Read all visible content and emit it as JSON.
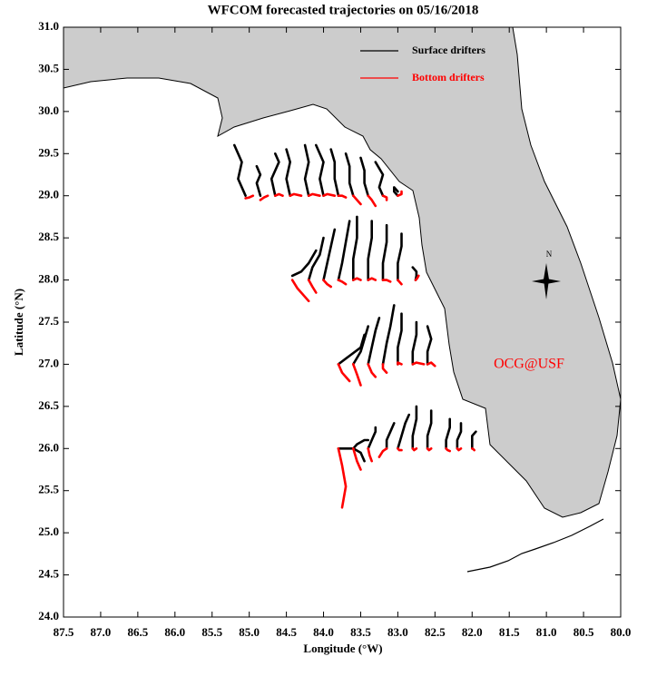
{
  "chart_data": {
    "type": "trajectory-map",
    "title": "WFCOM forecasted trajectories on 05/16/2018",
    "x_label": "Longitude (°W)",
    "y_label": "Latitude (°N)",
    "annotation": "OCG@USF",
    "compass": "N",
    "legend": "upper right",
    "xlim": [
      87.5,
      80.0
    ],
    "ylim": [
      24,
      31
    ],
    "xticks": [
      87.5,
      {
        "value": 87,
        "label": "87.0"
      },
      86.5,
      {
        "value": 86,
        "label": "86.0"
      },
      85.5,
      {
        "value": 85,
        "label": "85.0"
      },
      84.5,
      {
        "value": 84,
        "label": "84.0"
      },
      83.5,
      {
        "value": 83,
        "label": "83.0"
      },
      82.5,
      {
        "value": 82,
        "label": "82.0"
      },
      81.5,
      {
        "value": 81,
        "label": "81.0"
      },
      80.5,
      {
        "value": 80,
        "label": "80.0"
      }
    ],
    "yticks": [
      {
        "value": 24,
        "label": "24.0"
      },
      24.5,
      {
        "value": 25,
        "label": "25.0"
      },
      25.5,
      {
        "value": 26,
        "label": "26.0"
      },
      26.5,
      {
        "value": 27,
        "label": "27.0"
      },
      27.5,
      {
        "value": 28,
        "label": "28.0"
      },
      28.5,
      {
        "value": 29,
        "label": "29.0"
      },
      29.5,
      {
        "value": 30,
        "label": "30.0"
      },
      30.5,
      {
        "value": 31,
        "label": "31.0"
      }
    ],
    "series": [
      {
        "name": "Surface drifters",
        "color": "#000000",
        "tracks": [
          {
            "lon": [
              85.05,
              85.15,
              85.1,
              85.2
            ],
            "lat": [
              29.0,
              29.2,
              29.4,
              29.6
            ]
          },
          {
            "lon": [
              84.85,
              84.9,
              84.85,
              84.9
            ],
            "lat": [
              29.0,
              29.15,
              29.25,
              29.35
            ]
          },
          {
            "lon": [
              84.65,
              84.7,
              84.6,
              84.65
            ],
            "lat": [
              29.0,
              29.2,
              29.4,
              29.5
            ]
          },
          {
            "lon": [
              84.45,
              84.5,
              84.45,
              84.5
            ],
            "lat": [
              29.0,
              29.2,
              29.4,
              29.55
            ]
          },
          {
            "lon": [
              84.2,
              84.25,
              84.2,
              84.25
            ],
            "lat": [
              29.0,
              29.2,
              29.4,
              29.6
            ]
          },
          {
            "lon": [
              84.0,
              84.05,
              84.0,
              84.1
            ],
            "lat": [
              29.0,
              29.2,
              29.4,
              29.6
            ]
          },
          {
            "lon": [
              83.8,
              83.85,
              83.85,
              83.9
            ],
            "lat": [
              29.0,
              29.2,
              29.4,
              29.55
            ]
          },
          {
            "lon": [
              83.6,
              83.65,
              83.65,
              83.7
            ],
            "lat": [
              29.0,
              29.15,
              29.35,
              29.5
            ]
          },
          {
            "lon": [
              83.4,
              83.45,
              83.45,
              83.5
            ],
            "lat": [
              29.0,
              29.15,
              29.3,
              29.45
            ]
          },
          {
            "lon": [
              83.2,
              83.25,
              83.2,
              83.3
            ],
            "lat": [
              29.0,
              29.1,
              29.25,
              29.4
            ]
          },
          {
            "lon": [
              83.0,
              83.05,
              83.05,
              83.0
            ],
            "lat": [
              29.0,
              29.05,
              29.1,
              29.05
            ]
          },
          {
            "lon": [
              84.42,
              84.3,
              84.2,
              84.1
            ],
            "lat": [
              28.05,
              28.1,
              28.2,
              28.35
            ]
          },
          {
            "lon": [
              84.2,
              84.15,
              84.05,
              84.0
            ],
            "lat": [
              28.0,
              28.15,
              28.3,
              28.5
            ]
          },
          {
            "lon": [
              84.0,
              83.95,
              83.9,
              83.85
            ],
            "lat": [
              28.0,
              28.2,
              28.4,
              28.6
            ]
          },
          {
            "lon": [
              83.8,
              83.75,
              83.7,
              83.65
            ],
            "lat": [
              28.0,
              28.2,
              28.45,
              28.7
            ]
          },
          {
            "lon": [
              83.6,
              83.6,
              83.55,
              83.55
            ],
            "lat": [
              28.0,
              28.25,
              28.5,
              28.75
            ]
          },
          {
            "lon": [
              83.4,
              83.4,
              83.35,
              83.35
            ],
            "lat": [
              28.0,
              28.25,
              28.5,
              28.7
            ]
          },
          {
            "lon": [
              83.2,
              83.2,
              83.15,
              83.15
            ],
            "lat": [
              28.0,
              28.2,
              28.45,
              28.65
            ]
          },
          {
            "lon": [
              83.0,
              83.0,
              82.95,
              82.95
            ],
            "lat": [
              28.0,
              28.2,
              28.4,
              28.55
            ]
          },
          {
            "lon": [
              82.76,
              82.75,
              82.75,
              82.8
            ],
            "lat": [
              28.0,
              28.05,
              28.1,
              28.15
            ]
          },
          {
            "lon": [
              83.8,
              83.65,
              83.5,
              83.45
            ],
            "lat": [
              27.0,
              27.1,
              27.2,
              27.35
            ]
          },
          {
            "lon": [
              83.6,
              83.5,
              83.45,
              83.4
            ],
            "lat": [
              27.0,
              27.15,
              27.3,
              27.45
            ]
          },
          {
            "lon": [
              83.4,
              83.35,
              83.3,
              83.25
            ],
            "lat": [
              27.0,
              27.2,
              27.4,
              27.55
            ]
          },
          {
            "lon": [
              83.2,
              83.15,
              83.1,
              83.05
            ],
            "lat": [
              27.0,
              27.25,
              27.45,
              27.7
            ]
          },
          {
            "lon": [
              83.0,
              83.0,
              82.95,
              82.95
            ],
            "lat": [
              27.0,
              27.2,
              27.4,
              27.6
            ]
          },
          {
            "lon": [
              82.8,
              82.8,
              82.75,
              82.75
            ],
            "lat": [
              27.0,
              27.15,
              27.35,
              27.5
            ]
          },
          {
            "lon": [
              82.6,
              82.6,
              82.55,
              82.6
            ],
            "lat": [
              27.0,
              27.15,
              27.3,
              27.45
            ]
          },
          {
            "lon": [
              83.8,
              83.6,
              83.5,
              83.45
            ],
            "lat": [
              26.0,
              26.0,
              25.95,
              25.85
            ]
          },
          {
            "lon": [
              83.6,
              83.55,
              83.45,
              83.4
            ],
            "lat": [
              26.0,
              26.05,
              26.1,
              26.1
            ]
          },
          {
            "lon": [
              83.4,
              83.35,
              83.3,
              83.3
            ],
            "lat": [
              26.0,
              26.1,
              26.2,
              26.25
            ]
          },
          {
            "lon": [
              83.15,
              83.15,
              83.1,
              83.05
            ],
            "lat": [
              26.0,
              26.1,
              26.2,
              26.3
            ]
          },
          {
            "lon": [
              83.0,
              82.95,
              82.9,
              82.85
            ],
            "lat": [
              26.0,
              26.15,
              26.3,
              26.4
            ]
          },
          {
            "lon": [
              82.8,
              82.8,
              82.75,
              82.75
            ],
            "lat": [
              26.0,
              26.15,
              26.35,
              26.5
            ]
          },
          {
            "lon": [
              82.6,
              82.6,
              82.55,
              82.55
            ],
            "lat": [
              26.0,
              26.15,
              26.3,
              26.45
            ]
          },
          {
            "lon": [
              82.35,
              82.35,
              82.3,
              82.3
            ],
            "lat": [
              26.0,
              26.1,
              26.25,
              26.35
            ]
          },
          {
            "lon": [
              82.2,
              82.2,
              82.15,
              82.15
            ],
            "lat": [
              26.0,
              26.1,
              26.2,
              26.3
            ]
          },
          {
            "lon": [
              82.0,
              82.0,
              82.0,
              81.95
            ],
            "lat": [
              26.0,
              26.05,
              26.15,
              26.2
            ]
          }
        ]
      },
      {
        "name": "Bottom drifters",
        "color": "#ff0000",
        "tracks": [
          {
            "lon": [
              85.05,
              85.0,
              84.95
            ],
            "lat": [
              28.97,
              28.98,
              29.0
            ]
          },
          {
            "lon": [
              84.85,
              84.8,
              84.75
            ],
            "lat": [
              28.95,
              28.98,
              29.0
            ]
          },
          {
            "lon": [
              84.65,
              84.6,
              84.55
            ],
            "lat": [
              29.0,
              29.02,
              29.0
            ]
          },
          {
            "lon": [
              84.45,
              84.4,
              84.3
            ],
            "lat": [
              29.0,
              29.02,
              29.0
            ]
          },
          {
            "lon": [
              84.2,
              84.15,
              84.05
            ],
            "lat": [
              29.0,
              29.02,
              29.0
            ]
          },
          {
            "lon": [
              84.0,
              83.95,
              83.85
            ],
            "lat": [
              29.0,
              29.02,
              29.0
            ]
          },
          {
            "lon": [
              83.8,
              83.75,
              83.7
            ],
            "lat": [
              29.0,
              29.0,
              28.98
            ]
          },
          {
            "lon": [
              83.6,
              83.55,
              83.5
            ],
            "lat": [
              29.0,
              28.95,
              28.9
            ]
          },
          {
            "lon": [
              83.4,
              83.35,
              83.3
            ],
            "lat": [
              29.0,
              28.95,
              28.88
            ]
          },
          {
            "lon": [
              83.2,
              83.15,
              83.15
            ],
            "lat": [
              29.0,
              28.98,
              28.95
            ]
          },
          {
            "lon": [
              83.0,
              82.95,
              82.95
            ],
            "lat": [
              29.0,
              29.02,
              29.05
            ]
          },
          {
            "lon": [
              84.42,
              84.35,
              84.2
            ],
            "lat": [
              28.0,
              27.9,
              27.75
            ]
          },
          {
            "lon": [
              84.2,
              84.15,
              84.1
            ],
            "lat": [
              28.0,
              27.92,
              27.85
            ]
          },
          {
            "lon": [
              84.0,
              83.95,
              83.9
            ],
            "lat": [
              28.0,
              27.95,
              27.92
            ]
          },
          {
            "lon": [
              83.8,
              83.75,
              83.7
            ],
            "lat": [
              28.0,
              27.98,
              27.95
            ]
          },
          {
            "lon": [
              83.6,
              83.55,
              83.5
            ],
            "lat": [
              28.0,
              28.02,
              28.0
            ]
          },
          {
            "lon": [
              83.4,
              83.35,
              83.3
            ],
            "lat": [
              28.0,
              28.02,
              28.0
            ]
          },
          {
            "lon": [
              83.2,
              83.15,
              83.1
            ],
            "lat": [
              28.0,
              28.0,
              27.98
            ]
          },
          {
            "lon": [
              83.0,
              82.98,
              82.95
            ],
            "lat": [
              28.0,
              27.98,
              27.95
            ]
          },
          {
            "lon": [
              82.76,
              82.74,
              82.72
            ],
            "lat": [
              28.0,
              28.02,
              28.05
            ]
          },
          {
            "lon": [
              83.8,
              83.75,
              83.65
            ],
            "lat": [
              27.0,
              26.9,
              26.8
            ]
          },
          {
            "lon": [
              83.6,
              83.55,
              83.5
            ],
            "lat": [
              27.0,
              26.88,
              26.75
            ]
          },
          {
            "lon": [
              83.4,
              83.35,
              83.3
            ],
            "lat": [
              27.0,
              26.9,
              26.85
            ]
          },
          {
            "lon": [
              83.2,
              83.2,
              83.15
            ],
            "lat": [
              27.0,
              26.95,
              26.9
            ]
          },
          {
            "lon": [
              83.0,
              83.0,
              82.95
            ],
            "lat": [
              27.0,
              27.02,
              27.0
            ]
          },
          {
            "lon": [
              82.8,
              82.75,
              82.65
            ],
            "lat": [
              27.0,
              27.02,
              27.0
            ]
          },
          {
            "lon": [
              82.6,
              82.55,
              82.5
            ],
            "lat": [
              27.0,
              27.02,
              26.98
            ]
          },
          {
            "lon": [
              83.8,
              83.75,
              83.7,
              83.75
            ],
            "lat": [
              26.0,
              25.8,
              25.55,
              25.3
            ]
          },
          {
            "lon": [
              83.6,
              83.55,
              83.5
            ],
            "lat": [
              26.0,
              25.85,
              25.75
            ]
          },
          {
            "lon": [
              83.4,
              83.38,
              83.35
            ],
            "lat": [
              26.0,
              25.92,
              25.85
            ]
          },
          {
            "lon": [
              83.15,
              83.2,
              83.25
            ],
            "lat": [
              26.0,
              25.97,
              25.9
            ]
          },
          {
            "lon": [
              83.0,
              82.98,
              82.95
            ],
            "lat": [
              26.0,
              25.98,
              25.98
            ]
          },
          {
            "lon": [
              82.8,
              82.78,
              82.75
            ],
            "lat": [
              26.0,
              25.98,
              26.0
            ]
          },
          {
            "lon": [
              82.6,
              82.58,
              82.55
            ],
            "lat": [
              26.0,
              25.98,
              26.0
            ]
          },
          {
            "lon": [
              82.35,
              82.33,
              82.3
            ],
            "lat": [
              26.0,
              25.98,
              25.97
            ]
          },
          {
            "lon": [
              82.2,
              82.18,
              82.15
            ],
            "lat": [
              26.0,
              25.98,
              26.0
            ]
          },
          {
            "lon": [
              82.0,
              81.98,
              81.97
            ],
            "lat": [
              26.0,
              25.99,
              25.98
            ]
          }
        ]
      }
    ]
  }
}
